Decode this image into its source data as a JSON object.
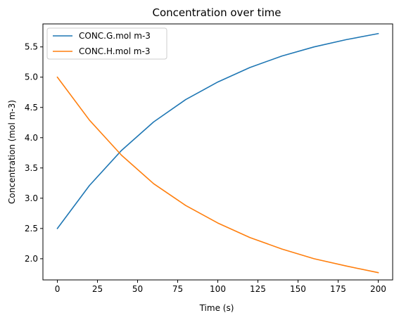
{
  "chart_data": {
    "type": "line",
    "title": "Concentration over time",
    "xlabel": "Time (s)",
    "ylabel": "Concentration (mol m-3)",
    "xlim": [
      -9,
      209
    ],
    "ylim": [
      1.65,
      5.88
    ],
    "xticks": [
      0,
      25,
      50,
      75,
      100,
      125,
      150,
      175,
      200
    ],
    "yticks": [
      2.0,
      2.5,
      3.0,
      3.5,
      4.0,
      4.5,
      5.0,
      5.5
    ],
    "xtick_labels": [
      "0",
      "25",
      "50",
      "75",
      "100",
      "125",
      "150",
      "175",
      "200"
    ],
    "ytick_labels": [
      "2.0",
      "2.5",
      "3.0",
      "3.5",
      "4.0",
      "4.5",
      "5.0",
      "5.5"
    ],
    "grid": false,
    "legend_position": "top-left",
    "x": [
      0,
      20,
      40,
      60,
      80,
      100,
      120,
      140,
      160,
      180,
      200
    ],
    "series": [
      {
        "name": "CONC.G.mol m-3",
        "color": "#1f77b4",
        "values": [
          2.5,
          3.21,
          3.79,
          4.26,
          4.63,
          4.92,
          5.16,
          5.35,
          5.5,
          5.62,
          5.72
        ]
      },
      {
        "name": "CONC.H.mol m-3",
        "color": "#ff7f0e",
        "values": [
          5.0,
          4.29,
          3.71,
          3.24,
          2.88,
          2.59,
          2.35,
          2.16,
          2.0,
          1.88,
          1.77
        ]
      }
    ]
  }
}
